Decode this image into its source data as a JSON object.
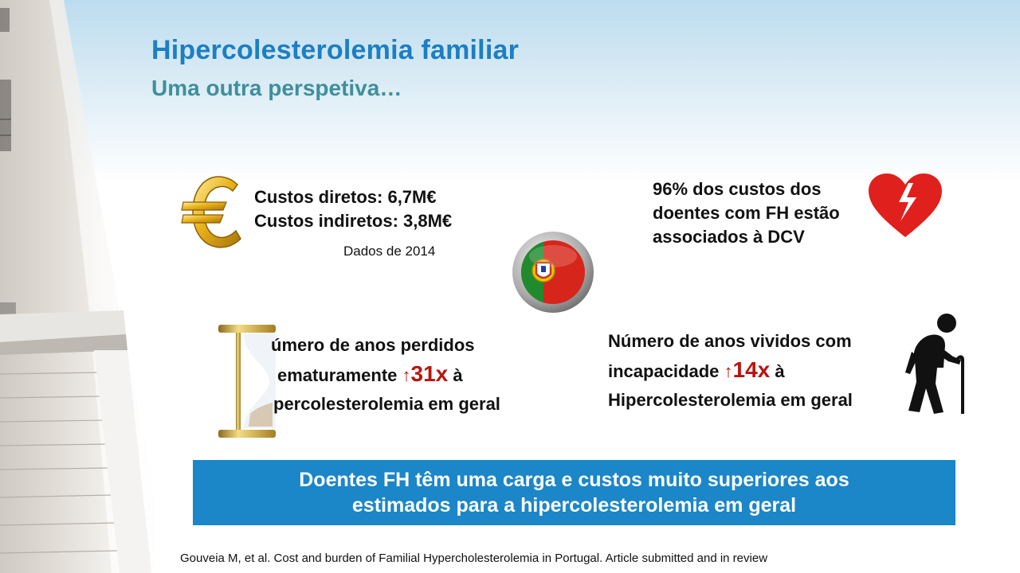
{
  "slide": {
    "title": "Hipercolesterolemia familiar",
    "subtitle": "Uma outra perspetiva…"
  },
  "costs": {
    "direct": "Custos diretos: 6,7M€",
    "indirect": "Custos indiretos: 3,8M€",
    "data_year": "Dados de 2014"
  },
  "cvd": {
    "lines": [
      "96% dos custos dos",
      "doentes com FH estão",
      "associados à DCV"
    ]
  },
  "years_lost": {
    "line1": "úmero de anos perdidos",
    "line2_prefix": "ematuramente ",
    "arrow": "↑",
    "factor": "31x",
    "line2_suffix": " à",
    "line3": "percolesterolemia em geral"
  },
  "years_disability": {
    "line1": "Número de anos vividos com",
    "line2_prefix": "incapacidade ",
    "arrow": "↑",
    "factor": "14x",
    "line2_suffix": " à",
    "line3": "Hipercolesterolemia em geral"
  },
  "callout": {
    "line1": "Doentes FH têm uma carga e custos muito superiores aos",
    "line2": "estimados para a hipercolesterolemia em geral"
  },
  "footer": {
    "citation": "Gouveia M, et al. Cost and burden of Familial Hypercholesterolemia in Portugal. Article submitted and in review"
  },
  "colors": {
    "title": "#1c7fc1",
    "subtitle": "#3f8f9c",
    "highlight": "#b8150f",
    "callout_bg": "#1b86c8"
  },
  "icons": {
    "euro": "euro-icon",
    "heart": "broken-heart-icon",
    "flag": "portugal-flag-icon",
    "hourglass": "hourglass-icon",
    "elderly": "elderly-person-icon"
  }
}
